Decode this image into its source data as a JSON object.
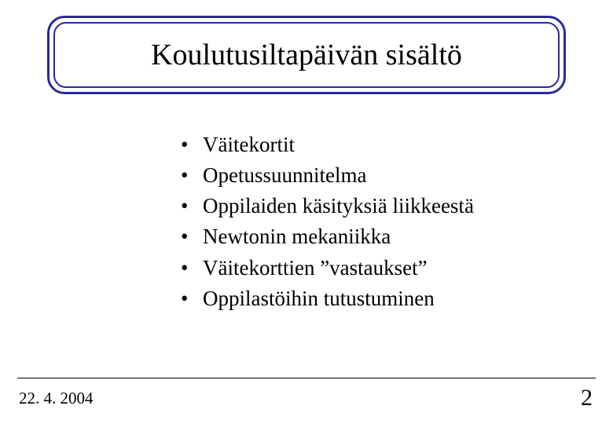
{
  "colors": {
    "title_border": "#2a2a9a",
    "text": "#000000",
    "background": "#ffffff",
    "rule": "#000000"
  },
  "typography": {
    "family": "Times New Roman",
    "title_fontsize_pt": 32,
    "bullet_fontsize_pt": 22,
    "footer_fontsize_pt": 16,
    "page_fontsize_pt": 24
  },
  "title": "Koulutusiltapäivän sisältö",
  "bullets": [
    "Väitekortit",
    "Opetussuunnitelma",
    "Oppilaiden käsityksiä liikkeestä",
    "Newtonin mekaniikka",
    "Väitekorttien ”vastaukset”",
    "Oppilastöihin tutustuminen"
  ],
  "footer": {
    "date": "22. 4. 2004",
    "page": "2"
  }
}
